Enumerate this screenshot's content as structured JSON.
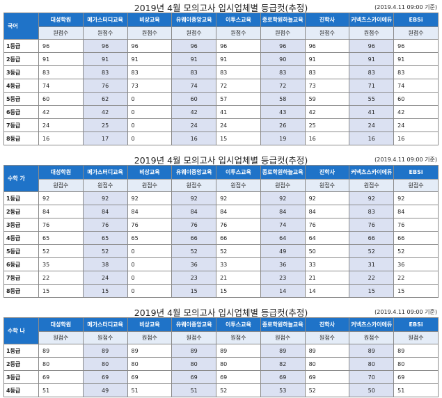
{
  "tables": [
    {
      "title": "2019년 4월 모의고사 입시업체별 등급컷(추정)",
      "note": "(2019.4.11 09:00 기준)",
      "subject": "국어",
      "columns": [
        "대성학원",
        "메가스터디교육",
        "비상교육",
        "유웨이중앙교육",
        "이투스교육",
        "종로학원하늘교육",
        "진학사",
        "커넥츠스카이에듀",
        "EBSi"
      ],
      "subheader": [
        "원점수",
        "원점수",
        "원점수",
        "원점수",
        "원점수",
        "원점수",
        "원점수",
        "원점수",
        "원점수"
      ],
      "rows": [
        {
          "grade": "1등급",
          "values": [
            96,
            96,
            96,
            96,
            96,
            96,
            96,
            96,
            96
          ]
        },
        {
          "grade": "2등급",
          "values": [
            91,
            91,
            91,
            91,
            91,
            90,
            91,
            91,
            91
          ]
        },
        {
          "grade": "3등급",
          "values": [
            83,
            83,
            83,
            83,
            83,
            83,
            83,
            83,
            83
          ]
        },
        {
          "grade": "4등급",
          "values": [
            74,
            76,
            73,
            74,
            72,
            72,
            73,
            71,
            74
          ]
        },
        {
          "grade": "5등급",
          "values": [
            60,
            62,
            0,
            60,
            57,
            58,
            59,
            55,
            60
          ]
        },
        {
          "grade": "6등급",
          "values": [
            42,
            42,
            0,
            42,
            41,
            43,
            42,
            41,
            42
          ]
        },
        {
          "grade": "7등급",
          "values": [
            24,
            25,
            0,
            24,
            24,
            26,
            25,
            24,
            24
          ]
        },
        {
          "grade": "8등급",
          "values": [
            16,
            17,
            0,
            16,
            15,
            19,
            16,
            16,
            16
          ]
        }
      ]
    },
    {
      "title": "2019년 4월 모의고사 입시업체별 등급컷(추정)",
      "note": "(2019.4.11 09:00 기준)",
      "subject": "수학 가",
      "columns": [
        "대성학원",
        "메가스터디교육",
        "비상교육",
        "유웨이중앙교육",
        "이투스교육",
        "종로학원하늘교육",
        "진학사",
        "커넥츠스카이에듀",
        "EBSi"
      ],
      "subheader": [
        "원점수",
        "원점수",
        "원점수",
        "원점수",
        "원점수",
        "원점수",
        "원점수",
        "원점수",
        "원점수"
      ],
      "rows": [
        {
          "grade": "1등급",
          "values": [
            92,
            92,
            92,
            92,
            92,
            92,
            92,
            92,
            92
          ]
        },
        {
          "grade": "2등급",
          "values": [
            84,
            84,
            84,
            84,
            84,
            84,
            84,
            83,
            84
          ]
        },
        {
          "grade": "3등급",
          "values": [
            76,
            76,
            76,
            76,
            76,
            74,
            76,
            76,
            76
          ]
        },
        {
          "grade": "4등급",
          "values": [
            65,
            65,
            65,
            66,
            66,
            64,
            64,
            66,
            66
          ]
        },
        {
          "grade": "5등급",
          "values": [
            52,
            52,
            0,
            52,
            52,
            49,
            50,
            52,
            52
          ]
        },
        {
          "grade": "6등급",
          "values": [
            35,
            38,
            0,
            36,
            33,
            36,
            33,
            31,
            36
          ]
        },
        {
          "grade": "7등급",
          "values": [
            22,
            24,
            0,
            23,
            21,
            23,
            21,
            22,
            22
          ]
        },
        {
          "grade": "8등급",
          "values": [
            15,
            15,
            0,
            15,
            15,
            14,
            14,
            15,
            15
          ]
        }
      ]
    },
    {
      "title": "2019년 4월 모의고사 입시업체별 등급컷(추정)",
      "note": "(2019.4.11 09:00 기준)",
      "subject": "수학 나",
      "columns": [
        "대성학원",
        "메가스터디교육",
        "비상교육",
        "유웨이중앙교육",
        "이투스교육",
        "종로학원하늘교육",
        "진학사",
        "커넥츠스카이에듀",
        "EBSi"
      ],
      "subheader": [
        "원점수",
        "원점수",
        "원점수",
        "원점수",
        "원점수",
        "원점수",
        "원점수",
        "원점수",
        "원점수"
      ],
      "rows": [
        {
          "grade": "1등급",
          "values": [
            89,
            89,
            89,
            89,
            89,
            89,
            89,
            89,
            89
          ]
        },
        {
          "grade": "2등급",
          "values": [
            80,
            80,
            80,
            80,
            80,
            82,
            80,
            80,
            80
          ]
        },
        {
          "grade": "3등급",
          "values": [
            69,
            69,
            69,
            69,
            69,
            69,
            69,
            70,
            69
          ]
        },
        {
          "grade": "4등급",
          "values": [
            51,
            49,
            51,
            51,
            52,
            53,
            52,
            50,
            51
          ]
        }
      ]
    }
  ]
}
